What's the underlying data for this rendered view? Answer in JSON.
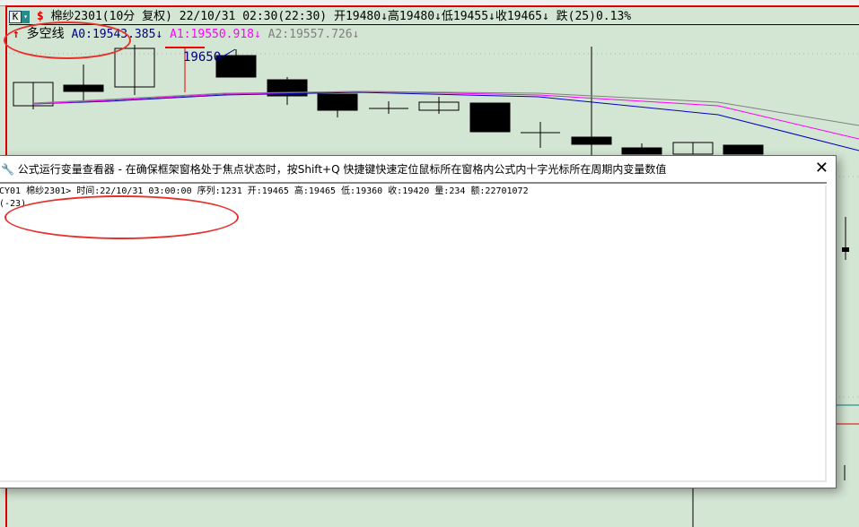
{
  "header": {
    "k_button": "K",
    "dropdown": "▾",
    "s_icon": "$",
    "title": "棉纱2301(10分 复权) 22/10/31 02:30(22:30)",
    "open": "开19480↓",
    "high": "高19480↓",
    "low": "低19455↓",
    "close": "收19465↓",
    "change": "跌(25)0.13%"
  },
  "indicator": {
    "arrow": "↑",
    "name": "多空线",
    "a0": "A0:19543.385↓",
    "a1": "A1:19550.918↓",
    "a2": "A2:19557.726↓",
    "colors": {
      "a0": "#000080",
      "a1": "#ff00ff",
      "a2": "#808080"
    }
  },
  "chart": {
    "price_label": "19650"
  },
  "dialog": {
    "title": "公式运行变量查看器 - 在确保框架窗格处于焦点状态时，按Shift+Q 快捷键快速定位鼠标所在窗格内公式内十字光标所在周期内变量数值",
    "close": "✕",
    "line1": "CY01 棉纱2301> 时间:22/10/31 03:00:00 序列:1231 开:19465 高:19465 低:19360 收:19420 量:234 额:22701072",
    "line2": "(-23)"
  }
}
